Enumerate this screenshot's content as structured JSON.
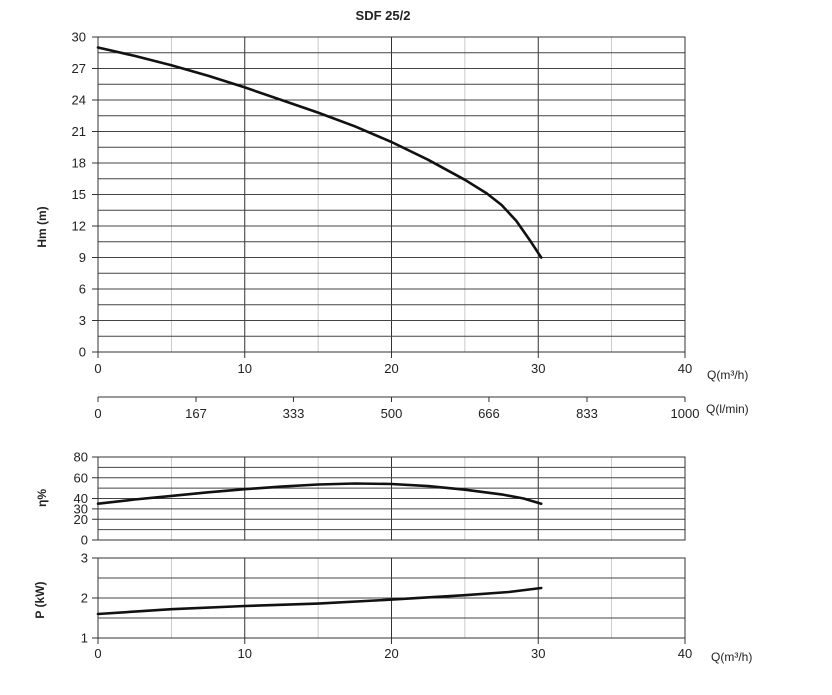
{
  "chart_data": [
    {
      "id": "head",
      "type": "line",
      "title": "SDF 25/2",
      "xlabel": "Q(m³/h)",
      "ylabel": "Hm (m)",
      "xlim": [
        0,
        40
      ],
      "ylim": [
        0,
        30
      ],
      "x_ticks": [
        "0",
        "10",
        "20",
        "30",
        "40"
      ],
      "y_ticks": [
        "0",
        "3",
        "6",
        "9",
        "12",
        "15",
        "18",
        "21",
        "24",
        "27",
        "30"
      ],
      "secondary_x_axis": {
        "label": "Q(l/min)",
        "ticks": [
          "0",
          "167",
          "333",
          "500",
          "666",
          "833",
          "1000"
        ],
        "range": [
          0,
          1000
        ]
      },
      "grid": true,
      "series": [
        {
          "x": [
            0,
            2.5,
            5,
            7.5,
            10,
            12.5,
            15,
            17.5,
            20,
            22.5,
            25,
            26.5,
            27.5,
            28.5,
            29.5,
            30.2
          ],
          "y": [
            29,
            28.2,
            27.3,
            26.3,
            25.2,
            24,
            22.8,
            21.5,
            20,
            18.3,
            16.4,
            15.1,
            14,
            12.5,
            10.5,
            9
          ]
        }
      ]
    },
    {
      "id": "efficiency",
      "type": "line",
      "xlabel": "",
      "ylabel": "η%",
      "xlim": [
        0,
        40
      ],
      "ylim": [
        0,
        80
      ],
      "y_ticks": [
        "0",
        "20",
        "30",
        "40",
        "60",
        "80"
      ],
      "grid": true,
      "series": [
        {
          "x": [
            0,
            2.5,
            5,
            7.5,
            10,
            12.5,
            15,
            17.5,
            20,
            22.5,
            25,
            27.5,
            29,
            30.2
          ],
          "y": [
            35,
            39,
            42.5,
            46,
            49,
            51.5,
            53.5,
            54.5,
            54,
            52,
            48.5,
            44,
            40,
            35
          ]
        }
      ]
    },
    {
      "id": "power",
      "type": "line",
      "xlabel": "Q(m³/h)",
      "ylabel": "P (kW)",
      "xlim": [
        0,
        40
      ],
      "ylim": [
        1,
        3
      ],
      "x_ticks": [
        "0",
        "10",
        "20",
        "30",
        "40"
      ],
      "y_ticks": [
        "1",
        "2",
        "3"
      ],
      "grid": true,
      "series": [
        {
          "x": [
            0,
            5,
            10,
            15,
            20,
            25,
            28,
            30.2
          ],
          "y": [
            1.6,
            1.72,
            1.8,
            1.86,
            1.96,
            2.07,
            2.15,
            2.25
          ]
        }
      ]
    }
  ]
}
